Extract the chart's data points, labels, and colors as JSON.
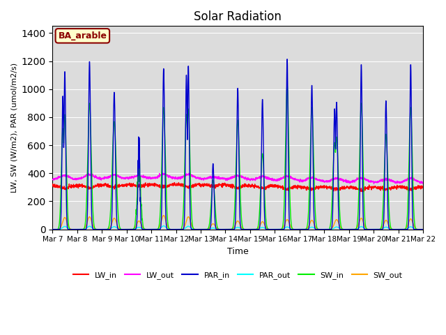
{
  "title": "Solar Radiation",
  "xlabel": "Time",
  "ylabel": "LW, SW (W/m2), PAR (umol/m2/s)",
  "ylim": [
    0,
    1450
  ],
  "yticks": [
    0,
    200,
    400,
    600,
    800,
    1000,
    1200,
    1400
  ],
  "annotation": "BA_arable",
  "annotation_color": "#8B0000",
  "annotation_bg": "#FFFFCC",
  "background_color": "#DCDCDC",
  "lines": {
    "LW_in": {
      "color": "#FF0000",
      "lw": 1.0
    },
    "LW_out": {
      "color": "#FF00FF",
      "lw": 1.0
    },
    "PAR_in": {
      "color": "#0000CC",
      "lw": 1.0
    },
    "PAR_out": {
      "color": "#00FFFF",
      "lw": 1.0
    },
    "SW_in": {
      "color": "#00EE00",
      "lw": 1.0
    },
    "SW_out": {
      "color": "#FFA500",
      "lw": 1.0
    }
  },
  "xtick_labels": [
    "Mar 7",
    "Mar 8",
    "Mar 9",
    "Mar 10",
    "Mar 11",
    "Mar 12",
    "Mar 13",
    "Mar 14",
    "Mar 15",
    "Mar 16",
    "Mar 17",
    "Mar 18",
    "Mar 19",
    "Mar 20",
    "Mar 21",
    "Mar 22"
  ],
  "n_days": 15,
  "points_per_day": 144,
  "start_day": 7,
  "figsize": [
    6.4,
    4.8
  ],
  "dpi": 100
}
